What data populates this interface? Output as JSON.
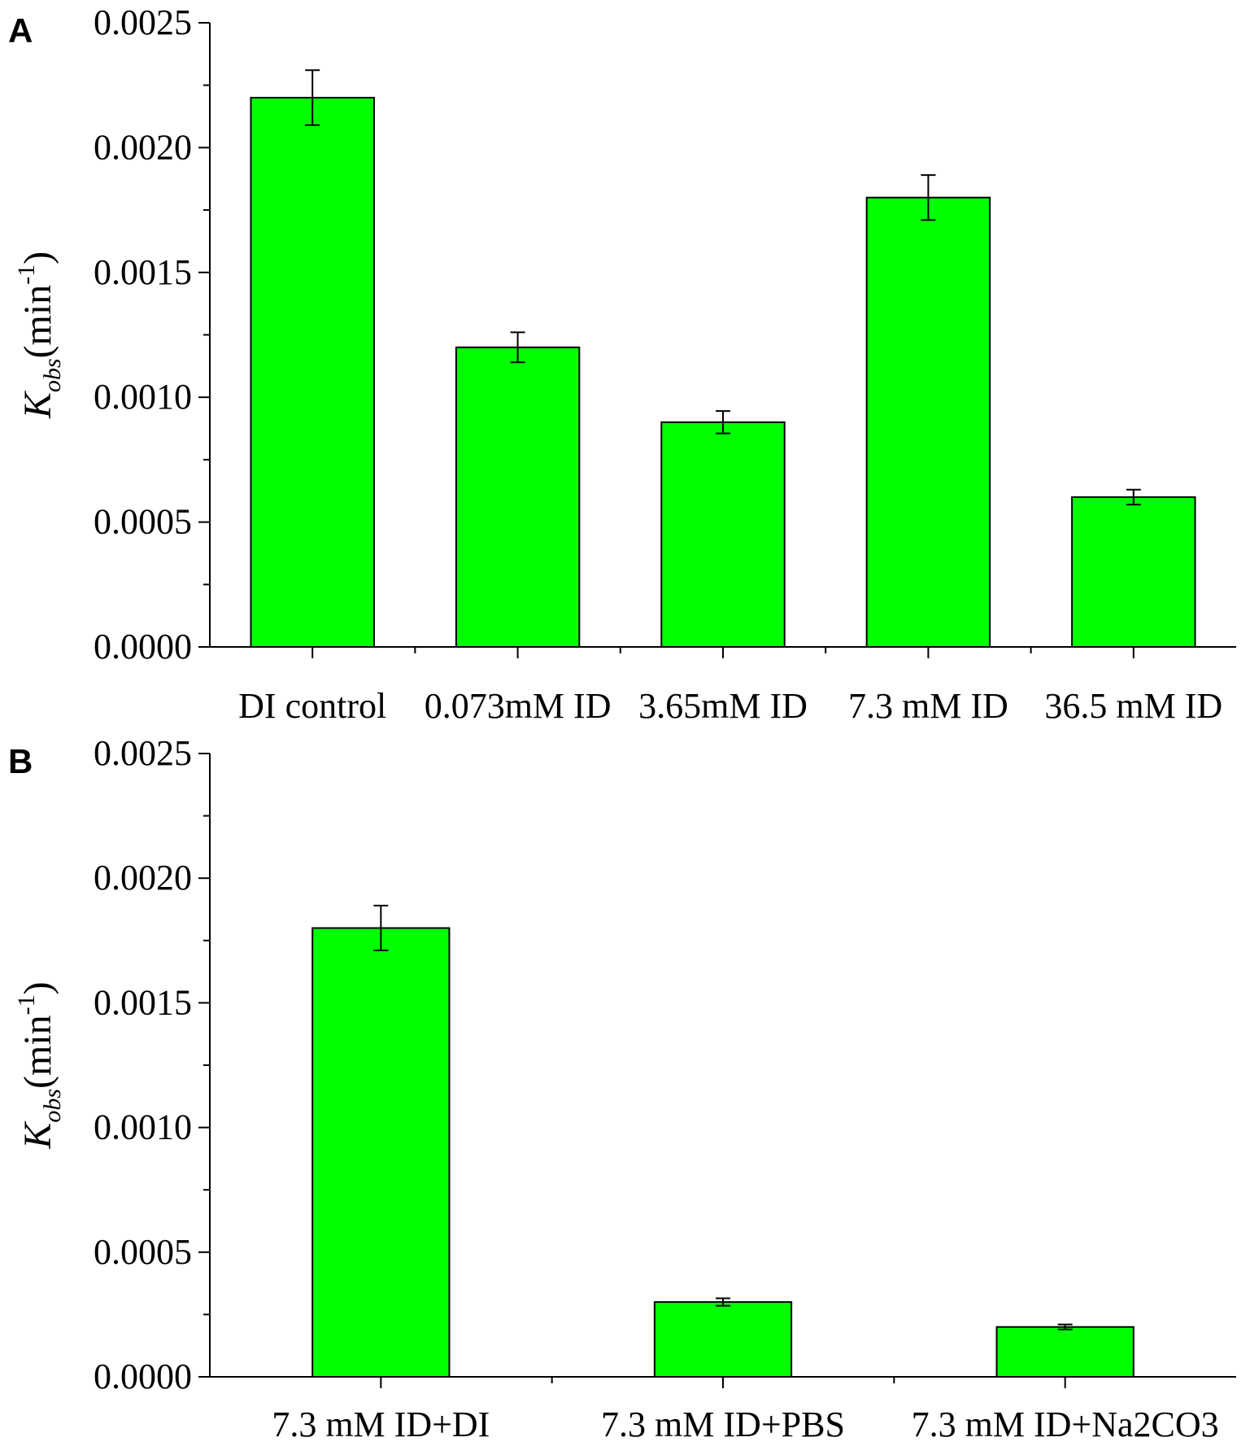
{
  "chart_data": [
    {
      "type": "bar",
      "panel_label": "A",
      "categories": [
        "DI control",
        "0.073mM ID",
        "3.65mM ID",
        "7.3 mM ID",
        "36.5 mM ID"
      ],
      "values": [
        0.0022,
        0.0012,
        0.0009,
        0.0018,
        0.0006
      ],
      "errors": [
        0.00011,
        6e-05,
        4.5e-05,
        9e-05,
        3e-05
      ],
      "ylabel": {
        "main": "K",
        "sub": "obs",
        "unit": "(min",
        "sup": "-1",
        "close": ")"
      },
      "ylim": [
        0,
        0.0025
      ],
      "yticks": [
        "0.0000",
        "0.0005",
        "0.0010",
        "0.0015",
        "0.0020",
        "0.0025"
      ],
      "bar_color": "#00ff00",
      "grid": false
    },
    {
      "type": "bar",
      "panel_label": "B",
      "categories": [
        "7.3 mM ID+DI",
        "7.3 mM ID+PBS",
        "7.3 mM ID+Na2CO3"
      ],
      "values": [
        0.0018,
        0.0003,
        0.0002
      ],
      "errors": [
        9e-05,
        1.5e-05,
        1e-05
      ],
      "ylabel": {
        "main": "K",
        "sub": "obs",
        "unit": "(min",
        "sup": "-1",
        "close": ")"
      },
      "ylim": [
        0,
        0.0025
      ],
      "yticks": [
        "0.0000",
        "0.0005",
        "0.0010",
        "0.0015",
        "0.0020",
        "0.0025"
      ],
      "bar_color": "#00ff00",
      "grid": false
    }
  ]
}
